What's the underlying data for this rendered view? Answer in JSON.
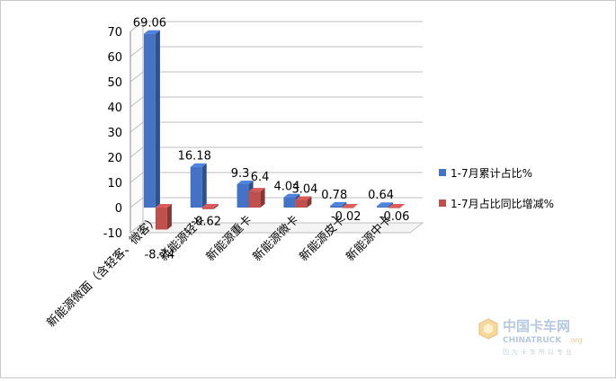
{
  "chart_data": {
    "type": "bar",
    "categories": [
      "新能源微面（含轻客、微客）",
      "新能源轻卡",
      "新能源重卡",
      "新能源微卡",
      "新能源皮卡",
      "新能源中卡"
    ],
    "series": [
      {
        "name": "1-7月累计占比%",
        "values": [
          69.06,
          16.18,
          9.3,
          4.04,
          0.78,
          0.64
        ],
        "labels": [
          "69.06",
          "16.18",
          "9.3",
          "4.04",
          "0.78",
          "0.64"
        ],
        "color": "#4472C4"
      },
      {
        "name": "1-7月占比同比增减%",
        "values": [
          -8.74,
          -0.62,
          6.4,
          3.04,
          -0.02,
          -0.06
        ],
        "labels": [
          "-8.74",
          "-0.62",
          "6.4",
          "3.04",
          "-0.02",
          "-0.06"
        ],
        "color": "#C0504D"
      }
    ],
    "ylim": [
      -10,
      70
    ],
    "yticks": [
      "-10",
      "0",
      "10",
      "20",
      "30",
      "40",
      "50",
      "60",
      "70"
    ],
    "grid": true,
    "legend": "right",
    "style": "3d-column"
  },
  "watermark": {
    "name": "中国卡车网",
    "latin": "CHINATRUCK",
    "suffix": ".org",
    "tagline": "因为卡车所以专业"
  }
}
